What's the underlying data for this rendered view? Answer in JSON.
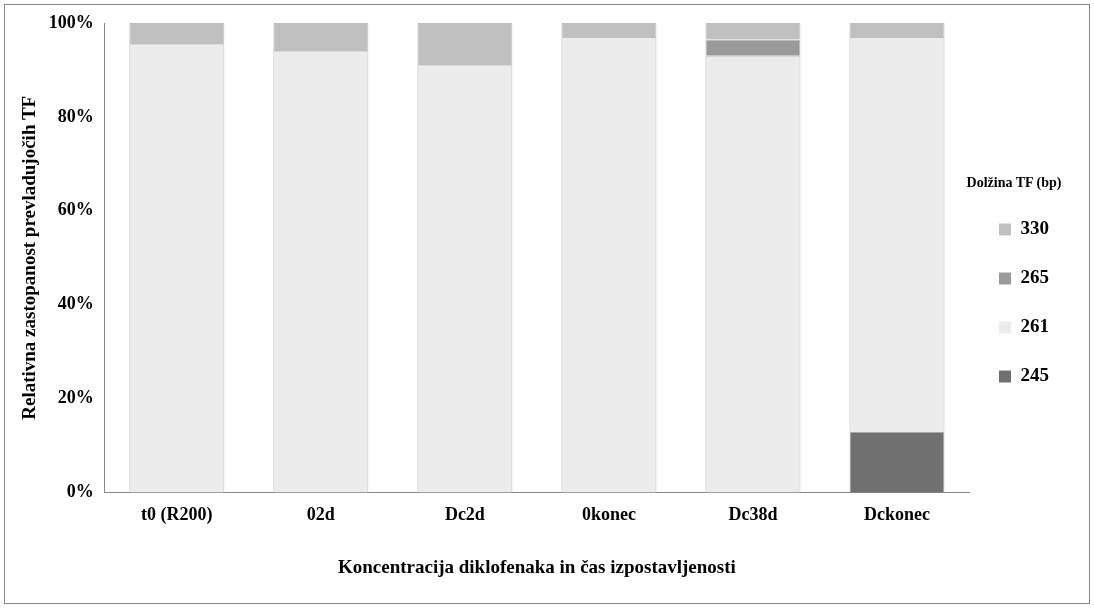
{
  "chart_data": {
    "type": "bar",
    "stacked": true,
    "xlabel": "Koncentracija diklofenaka in čas izpostavljenosti",
    "ylabel": "Relativna zastopanost prevladujočih TF",
    "legend_title": "Dolžina TF (bp)",
    "legend": "right",
    "grid": false,
    "categories": [
      "t0 (R200)",
      "02d",
      "Dc2d",
      "0konec",
      "Dc38d",
      "Dckonec"
    ],
    "series": [
      {
        "name": "245",
        "color": "#707070",
        "values": [
          0,
          0,
          0,
          0,
          0,
          13
        ]
      },
      {
        "name": "261",
        "color": "#ececec",
        "values": [
          95.5,
          94,
          91,
          97,
          93,
          84
        ]
      },
      {
        "name": "265",
        "color": "#9a9a9a",
        "values": [
          0,
          0,
          0,
          0,
          3.5,
          0
        ]
      },
      {
        "name": "330",
        "color": "#c0c0c0",
        "values": [
          4.5,
          6,
          9,
          3,
          3.5,
          3
        ]
      }
    ],
    "ylim": [
      0,
      100
    ],
    "yticks": [
      {
        "value": 0,
        "label": "0%"
      },
      {
        "value": 20,
        "label": "20%"
      },
      {
        "value": 40,
        "label": "40%"
      },
      {
        "value": 60,
        "label": "60%"
      },
      {
        "value": 80,
        "label": "80%"
      },
      {
        "value": 100,
        "label": "100%"
      }
    ]
  }
}
